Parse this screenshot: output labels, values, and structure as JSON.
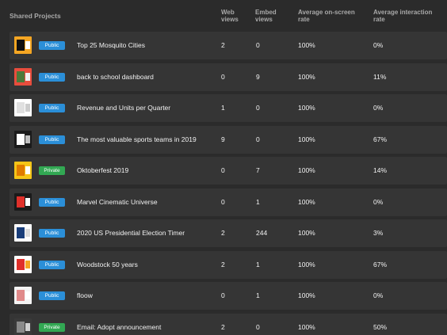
{
  "header": {
    "title": "Shared Projects",
    "web_views": "Web\nviews",
    "embed_views": "Embed\nviews",
    "avg_onscreen": "Average on-screen\nrate",
    "avg_interaction": "Average interaction\nrate"
  },
  "rows": [
    {
      "name": "Top 25 Mosquito Cities",
      "visibility": "Public",
      "web": "2",
      "embed": "0",
      "avg": "100%",
      "interaction": "0%",
      "thumb_colors": [
        "#f5a623",
        "#111111",
        "#ffffff"
      ]
    },
    {
      "name": "back to school dashboard",
      "visibility": "Public",
      "web": "0",
      "embed": "9",
      "avg": "100%",
      "interaction": "11%",
      "thumb_colors": [
        "#e84d3d",
        "#4a7a3a",
        "#f0f0f0"
      ]
    },
    {
      "name": "Revenue and Units per Quarter",
      "visibility": "Public",
      "web": "1",
      "embed": "0",
      "avg": "100%",
      "interaction": "0%",
      "thumb_colors": [
        "#ffffff",
        "#e0e0e0",
        "#cccccc"
      ]
    },
    {
      "name": "The most valuable sports teams in 2019",
      "visibility": "Public",
      "web": "9",
      "embed": "0",
      "avg": "100%",
      "interaction": "67%",
      "thumb_colors": [
        "#1a1a1a",
        "#ffffff",
        "#c0c0c0"
      ]
    },
    {
      "name": "Oktoberfest 2019",
      "visibility": "Private",
      "web": "0",
      "embed": "7",
      "avg": "100%",
      "interaction": "14%",
      "thumb_colors": [
        "#f5c518",
        "#e07b00",
        "#ffffff"
      ]
    },
    {
      "name": "Marvel Cinematic Universe",
      "visibility": "Public",
      "web": "0",
      "embed": "1",
      "avg": "100%",
      "interaction": "0%",
      "thumb_colors": [
        "#1a1a1a",
        "#e0302a",
        "#ffffff"
      ]
    },
    {
      "name": "2020 US Presidential Election Timer",
      "visibility": "Public",
      "web": "2",
      "embed": "244",
      "avg": "100%",
      "interaction": "3%",
      "thumb_colors": [
        "#ffffff",
        "#1a3e7a",
        "#dddddd"
      ]
    },
    {
      "name": "Woodstock 50 years",
      "visibility": "Public",
      "web": "2",
      "embed": "1",
      "avg": "100%",
      "interaction": "67%",
      "thumb_colors": [
        "#ffffff",
        "#e0302a",
        "#f5a623"
      ]
    },
    {
      "name": "floow",
      "visibility": "Public",
      "web": "0",
      "embed": "1",
      "avg": "100%",
      "interaction": "0%",
      "thumb_colors": [
        "#f4f4f4",
        "#e08a8a",
        "#ffffff"
      ]
    },
    {
      "name": "Email: Adopt announcement",
      "visibility": "Private",
      "web": "2",
      "embed": "0",
      "avg": "100%",
      "interaction": "50%",
      "thumb_colors": [
        "#3a3a3a",
        "#8a8a8a",
        "#d0d0d0"
      ]
    }
  ],
  "colors": {
    "background": "#2b2b2b",
    "row_background": "#353535",
    "public_badge": "#2b8fd8",
    "private_badge": "#32a853"
  }
}
